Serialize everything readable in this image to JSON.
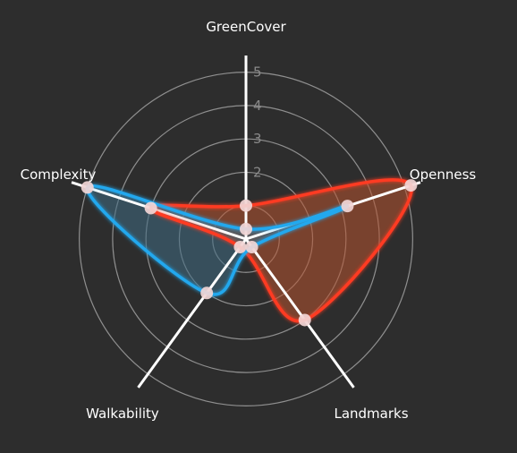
{
  "chart_data": {
    "type": "radar",
    "axes": [
      "GreenCover",
      "Openness",
      "Landmarks",
      "Walkability",
      "Complexity"
    ],
    "ticks": [
      "2",
      "3",
      "4",
      "5"
    ],
    "range": [
      0,
      5.5
    ],
    "series": [
      {
        "values": [
          1.0,
          5.2,
          3.0,
          0.3,
          3.0
        ],
        "color": "#ff3b22",
        "fill": "#b85430"
      },
      {
        "values": [
          0.3,
          3.2,
          0.3,
          2.0,
          5.0
        ],
        "color": "#22a8ee",
        "fill": "#3f6b84"
      }
    ],
    "grid": true,
    "legend": "none"
  },
  "colors": {
    "background": "#2d2d2d",
    "grid": "#8f8f8f",
    "spoke": "#ffffff",
    "point": "#f2d6d6"
  }
}
